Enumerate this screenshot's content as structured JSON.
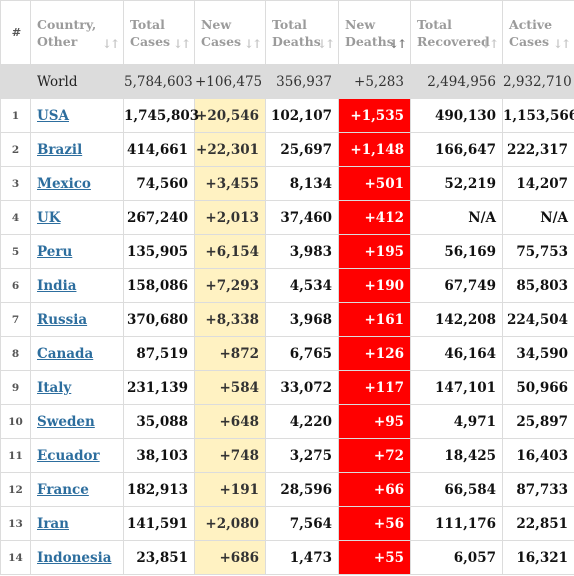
{
  "headers": {
    "index": "#",
    "country": [
      "Country,",
      "Other"
    ],
    "total_cases": [
      "Total",
      "Cases"
    ],
    "new_cases": [
      "New",
      "Cases"
    ],
    "total_deaths": [
      "Total",
      "Deaths"
    ],
    "new_deaths": [
      "New",
      "Deaths"
    ],
    "total_recovered": [
      "Total",
      "Recovered"
    ],
    "active_cases": [
      "Active",
      "Cases"
    ]
  },
  "world": {
    "country": "World",
    "total_cases": "5,784,603",
    "new_cases": "+106,475",
    "total_deaths": "356,937",
    "new_deaths": "+5,283",
    "total_recovered": "2,494,956",
    "active_cases": "2,932,710"
  },
  "rows": [
    {
      "index": "1",
      "country": "USA",
      "total_cases": "1,745,803",
      "new_cases": "+20,546",
      "total_deaths": "102,107",
      "new_deaths": "+1,535",
      "total_recovered": "490,130",
      "active_cases": "1,153,566"
    },
    {
      "index": "2",
      "country": "Brazil",
      "total_cases": "414,661",
      "new_cases": "+22,301",
      "total_deaths": "25,697",
      "new_deaths": "+1,148",
      "total_recovered": "166,647",
      "active_cases": "222,317"
    },
    {
      "index": "3",
      "country": "Mexico",
      "total_cases": "74,560",
      "new_cases": "+3,455",
      "total_deaths": "8,134",
      "new_deaths": "+501",
      "total_recovered": "52,219",
      "active_cases": "14,207"
    },
    {
      "index": "4",
      "country": "UK",
      "total_cases": "267,240",
      "new_cases": "+2,013",
      "total_deaths": "37,460",
      "new_deaths": "+412",
      "total_recovered": "N/A",
      "active_cases": "N/A"
    },
    {
      "index": "5",
      "country": "Peru",
      "total_cases": "135,905",
      "new_cases": "+6,154",
      "total_deaths": "3,983",
      "new_deaths": "+195",
      "total_recovered": "56,169",
      "active_cases": "75,753"
    },
    {
      "index": "6",
      "country": "India",
      "total_cases": "158,086",
      "new_cases": "+7,293",
      "total_deaths": "4,534",
      "new_deaths": "+190",
      "total_recovered": "67,749",
      "active_cases": "85,803"
    },
    {
      "index": "7",
      "country": "Russia",
      "total_cases": "370,680",
      "new_cases": "+8,338",
      "total_deaths": "3,968",
      "new_deaths": "+161",
      "total_recovered": "142,208",
      "active_cases": "224,504"
    },
    {
      "index": "8",
      "country": "Canada",
      "total_cases": "87,519",
      "new_cases": "+872",
      "total_deaths": "6,765",
      "new_deaths": "+126",
      "total_recovered": "46,164",
      "active_cases": "34,590"
    },
    {
      "index": "9",
      "country": "Italy",
      "total_cases": "231,139",
      "new_cases": "+584",
      "total_deaths": "33,072",
      "new_deaths": "+117",
      "total_recovered": "147,101",
      "active_cases": "50,966"
    },
    {
      "index": "10",
      "country": "Sweden",
      "total_cases": "35,088",
      "new_cases": "+648",
      "total_deaths": "4,220",
      "new_deaths": "+95",
      "total_recovered": "4,971",
      "active_cases": "25,897"
    },
    {
      "index": "11",
      "country": "Ecuador",
      "total_cases": "38,103",
      "new_cases": "+748",
      "total_deaths": "3,275",
      "new_deaths": "+72",
      "total_recovered": "18,425",
      "active_cases": "16,403"
    },
    {
      "index": "12",
      "country": "France",
      "total_cases": "182,913",
      "new_cases": "+191",
      "total_deaths": "28,596",
      "new_deaths": "+66",
      "total_recovered": "66,584",
      "active_cases": "87,733"
    },
    {
      "index": "13",
      "country": "Iran",
      "total_cases": "141,591",
      "new_cases": "+2,080",
      "total_deaths": "7,564",
      "new_deaths": "+56",
      "total_recovered": "111,176",
      "active_cases": "22,851"
    },
    {
      "index": "14",
      "country": "Indonesia",
      "total_cases": "23,851",
      "new_cases": "+686",
      "total_deaths": "1,473",
      "new_deaths": "+55",
      "total_recovered": "6,057",
      "active_cases": "16,321"
    }
  ],
  "sorted_by": "new_deaths",
  "colors": {
    "new_cases_bg": "#fff2c2",
    "new_deaths_bg": "#ff0000",
    "world_row_bg": "#dcdcdc",
    "country_link": "#2d6e9e"
  }
}
